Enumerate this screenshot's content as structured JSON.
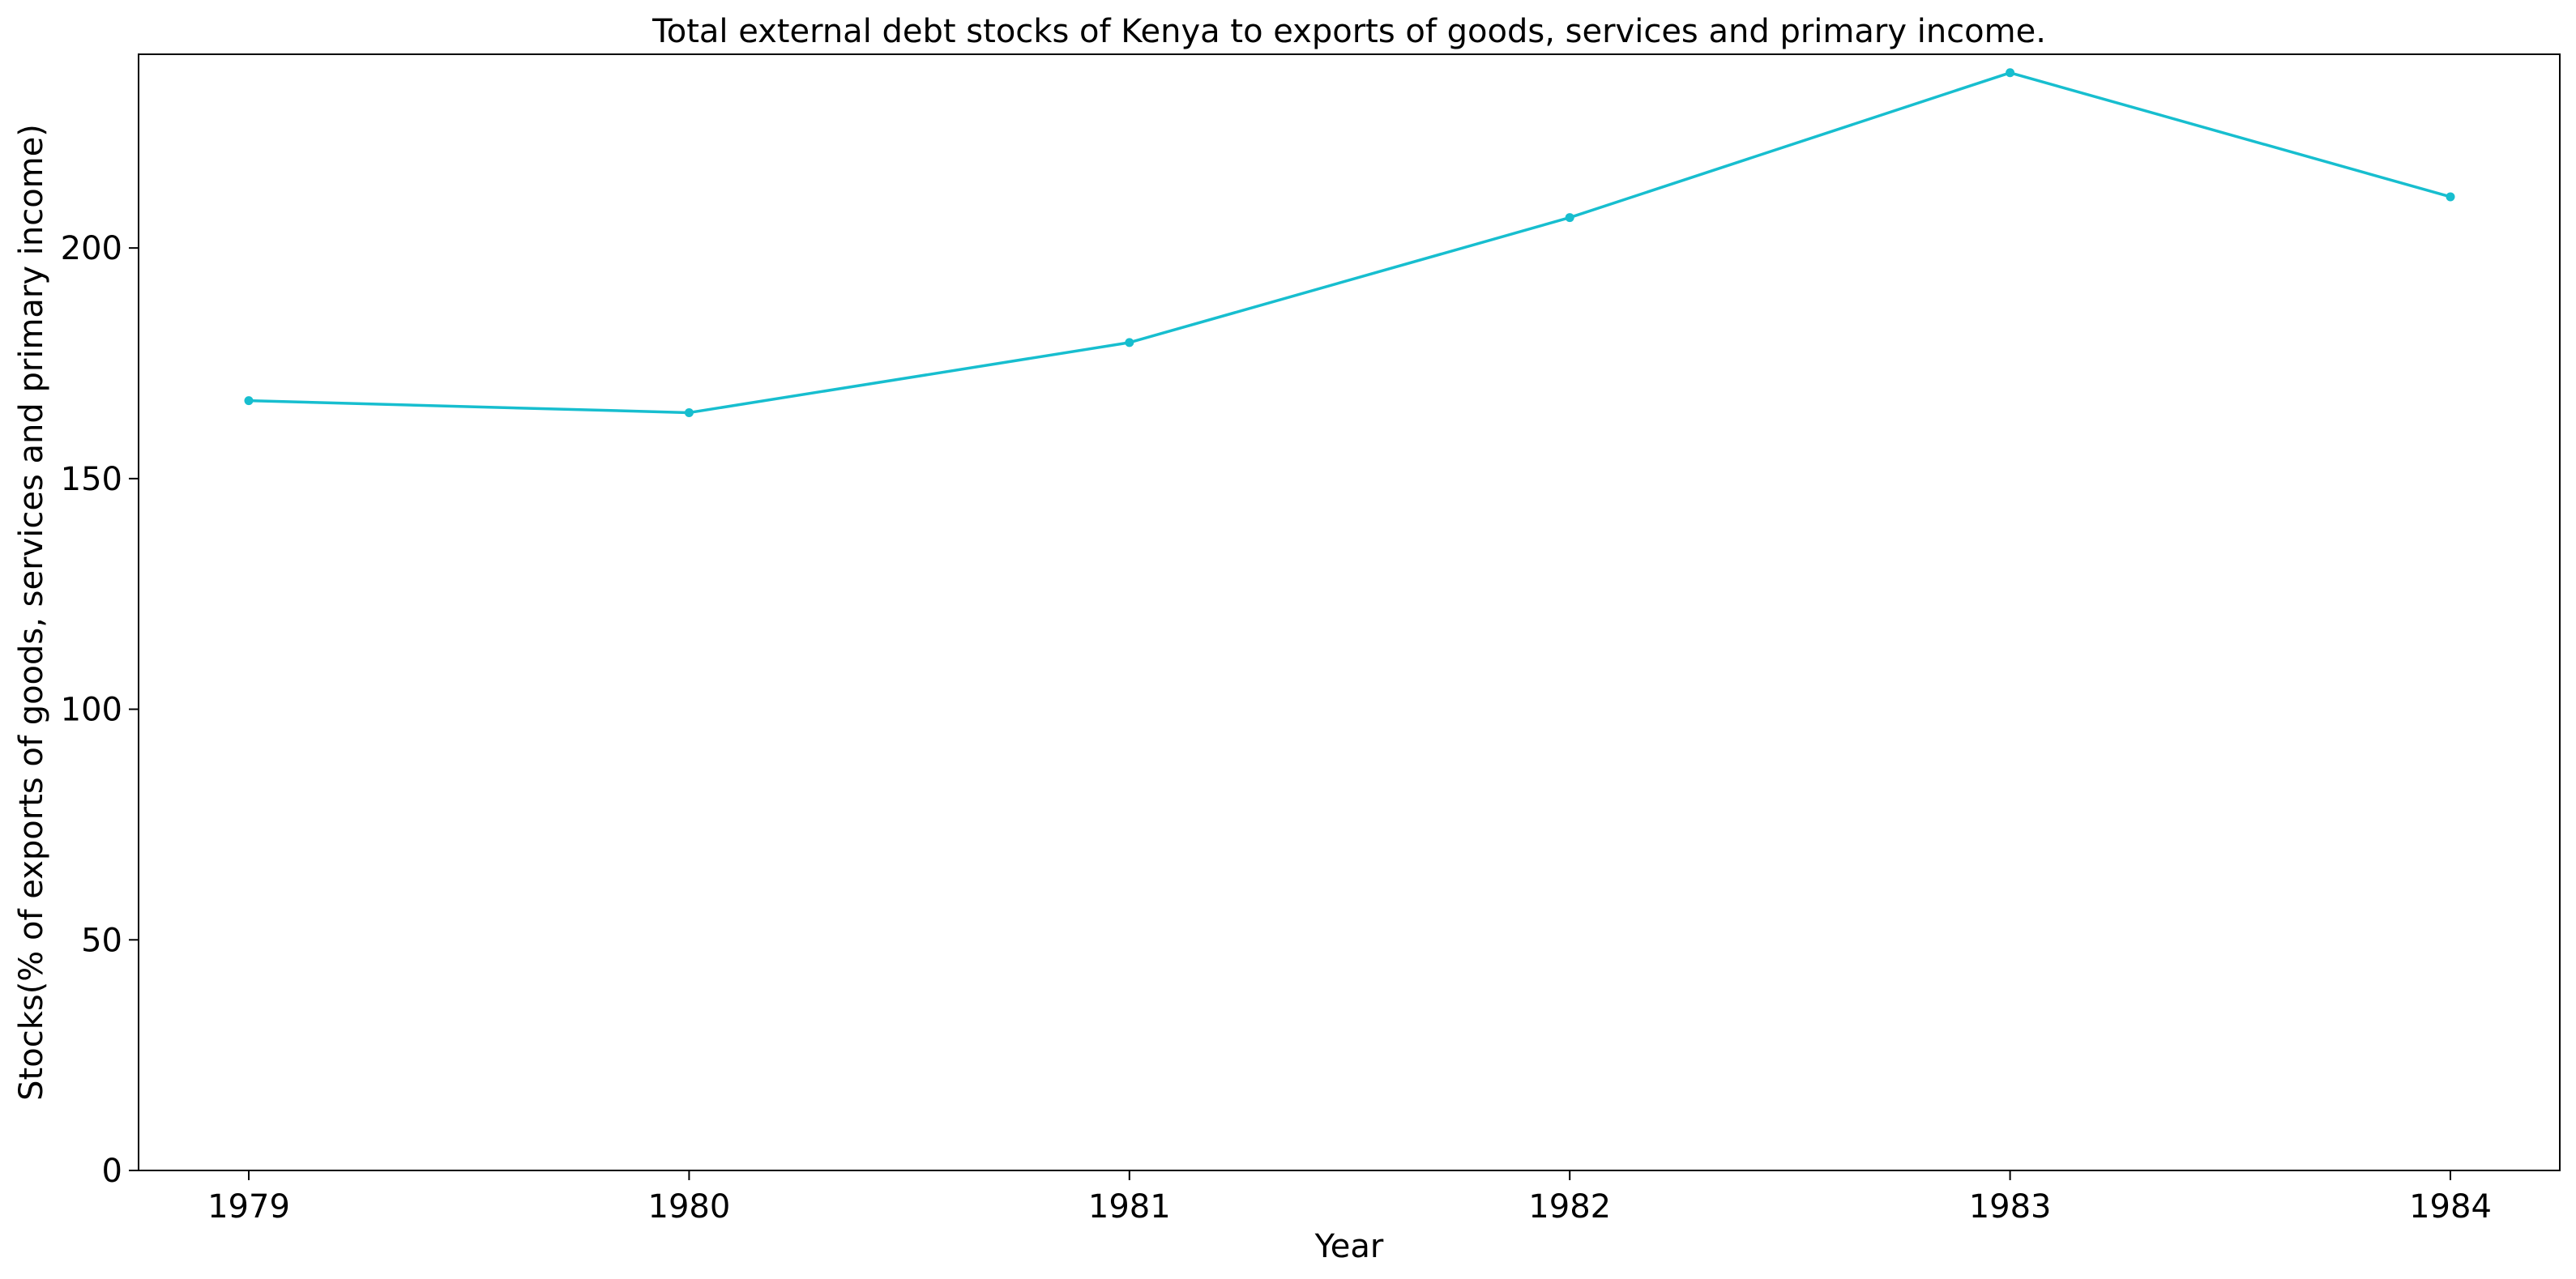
{
  "chart_data": {
    "type": "line",
    "title": "Total external debt stocks of Kenya to exports of goods, services and primary income.",
    "xlabel": "Year",
    "ylabel": "Stocks(% of exports of goods, services and primary income)",
    "x": [
      "1979",
      "1980",
      "1981",
      "1982",
      "1983",
      "1984"
    ],
    "series": [
      {
        "values": [
          166.9,
          164.3,
          179.5,
          206.6,
          238.0,
          211.1
        ],
        "color": "#17becf"
      }
    ],
    "ylim": [
      0,
      242
    ],
    "yticks": [
      0,
      50,
      100,
      150,
      200
    ],
    "grid": false,
    "legend": "none"
  }
}
